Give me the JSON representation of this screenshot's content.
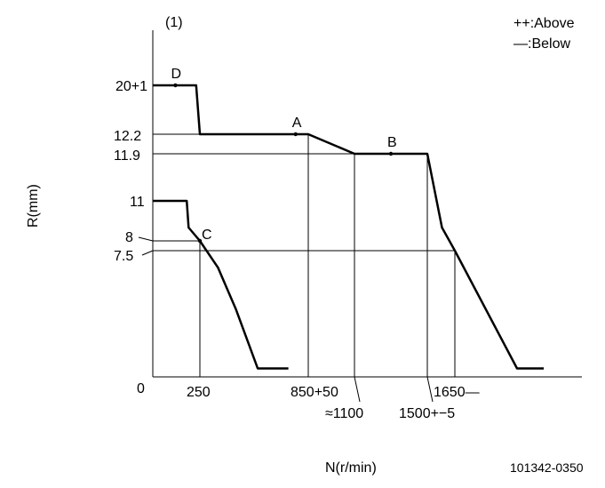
{
  "chart_data": {
    "type": "line",
    "panel_label": "(1)",
    "legend": {
      "above": "++:Above",
      "below": "—:Below",
      "placement": "top-right"
    },
    "xlabel": "N(r/min)",
    "ylabel": "R(mm)",
    "drawing_id": "101342-0350",
    "origin_label": "0",
    "y_ticks": [
      {
        "value": 20,
        "label": "20+1"
      },
      {
        "value": 12.2,
        "label": "12.2"
      },
      {
        "value": 11.9,
        "label": "11.9"
      },
      {
        "value": 11,
        "label": "11"
      },
      {
        "value": 8,
        "label": "8"
      },
      {
        "value": 7.5,
        "label": "7.5"
      }
    ],
    "x_ticks": [
      {
        "value": 250,
        "label": "250"
      },
      {
        "value": 850,
        "label": "850+50"
      },
      {
        "value": 1100,
        "label": "≈1100"
      },
      {
        "value": 1500,
        "label": "1500+−5"
      },
      {
        "value": 1650,
        "label": "1650—"
      }
    ],
    "series": [
      {
        "name": "upper",
        "points": [
          [
            0,
            20
          ],
          [
            230,
            20
          ],
          [
            250,
            12.2
          ],
          [
            850,
            12.2
          ],
          [
            1100,
            11.9
          ],
          [
            1500,
            11.9
          ],
          [
            1580,
            9
          ],
          [
            1650,
            7.5
          ],
          [
            2000,
            0.5
          ],
          [
            2150,
            0.5
          ]
        ]
      },
      {
        "name": "lower",
        "points": [
          [
            0,
            11
          ],
          [
            180,
            11
          ],
          [
            190,
            9
          ],
          [
            250,
            8
          ],
          [
            350,
            6.5
          ],
          [
            450,
            4
          ],
          [
            570,
            0.5
          ],
          [
            740,
            0.5
          ]
        ]
      }
    ],
    "points": [
      {
        "label": "D",
        "x": 120,
        "y": 20
      },
      {
        "label": "A",
        "x": 780,
        "y": 12.2
      },
      {
        "label": "B",
        "x": 1300,
        "y": 11.9
      },
      {
        "label": "C",
        "x": 250,
        "y": 8
      }
    ]
  }
}
